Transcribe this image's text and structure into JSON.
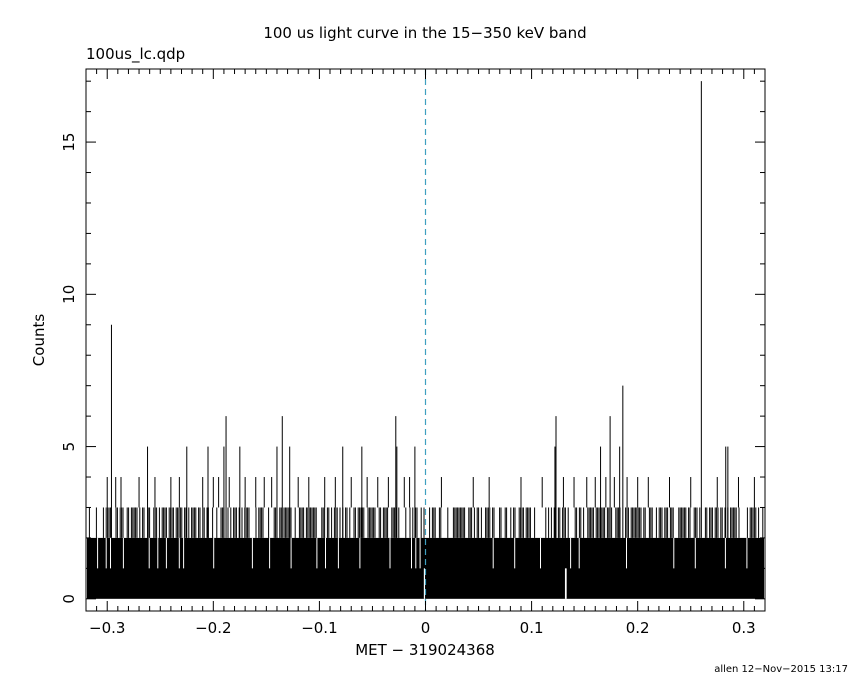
{
  "chart_data": {
    "type": "bar",
    "title": "100 us light curve in the 15−350 keV band",
    "file_label": "100us_lc.qdp",
    "xlabel": "MET − 319024368",
    "ylabel": "Counts",
    "footer": "allen 12−Nov−2015 13:17",
    "xlim": [
      -0.32,
      0.32
    ],
    "ylim": [
      -0.4,
      17.4
    ],
    "x_ticks": [
      -0.3,
      -0.2,
      -0.1,
      0,
      0.1,
      0.2,
      0.3
    ],
    "x_tick_labels": [
      "−0.3",
      "−0.2",
      "−0.1",
      "0",
      "0.1",
      "0.2",
      "0.3"
    ],
    "y_ticks": [
      0,
      5,
      10,
      15
    ],
    "y_tick_labels": [
      "0",
      "5",
      "10",
      "15"
    ],
    "trigger_line": {
      "x": 0,
      "color": "#3fa0c0"
    },
    "baseline_count": 2,
    "spikes": [
      {
        "x": -0.296,
        "y": 9
      },
      {
        "x": -0.262,
        "y": 5
      },
      {
        "x": -0.225,
        "y": 5
      },
      {
        "x": -0.205,
        "y": 5
      },
      {
        "x": -0.19,
        "y": 5
      },
      {
        "x": -0.188,
        "y": 6
      },
      {
        "x": -0.175,
        "y": 5
      },
      {
        "x": -0.14,
        "y": 5
      },
      {
        "x": -0.135,
        "y": 6
      },
      {
        "x": -0.128,
        "y": 5
      },
      {
        "x": -0.078,
        "y": 5
      },
      {
        "x": -0.06,
        "y": 5
      },
      {
        "x": -0.028,
        "y": 6
      },
      {
        "x": -0.027,
        "y": 5
      },
      {
        "x": -0.01,
        "y": 5
      },
      {
        "x": 0.122,
        "y": 5
      },
      {
        "x": 0.123,
        "y": 6
      },
      {
        "x": 0.165,
        "y": 5
      },
      {
        "x": 0.174,
        "y": 6
      },
      {
        "x": 0.183,
        "y": 5
      },
      {
        "x": 0.186,
        "y": 7
      },
      {
        "x": 0.26,
        "y": 17
      },
      {
        "x": 0.283,
        "y": 5
      },
      {
        "x": 0.285,
        "y": 5
      }
    ],
    "fours": [
      -0.3,
      -0.292,
      -0.287,
      -0.27,
      -0.255,
      -0.24,
      -0.232,
      -0.21,
      -0.2,
      -0.195,
      -0.185,
      -0.17,
      -0.16,
      -0.152,
      -0.145,
      -0.12,
      -0.11,
      -0.095,
      -0.085,
      -0.07,
      -0.055,
      -0.045,
      -0.035,
      -0.02,
      -0.015,
      0.015,
      0.045,
      0.06,
      0.09,
      0.11,
      0.13,
      0.14,
      0.152,
      0.16,
      0.17,
      0.178,
      0.19,
      0.2,
      0.21,
      0.23,
      0.25,
      0.275,
      0.295,
      0.31
    ],
    "zero_gaps": [
      -0.001,
      0.132,
      0.1325
    ]
  }
}
